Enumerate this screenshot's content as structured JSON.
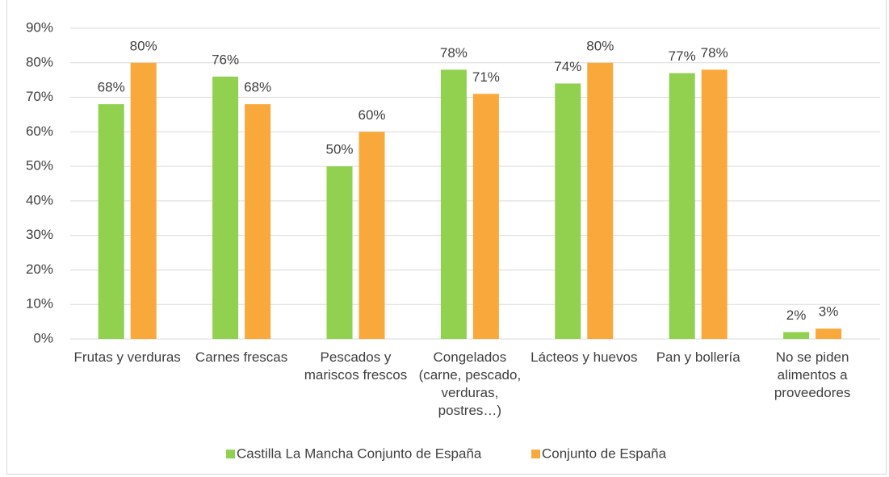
{
  "chart_data": {
    "type": "bar",
    "categories": [
      "Frutas y verduras",
      "Carnes frescas",
      "Pescados y mariscos frescos",
      "Congelados (carne, pescado, verduras, postres…)",
      "Lácteos y huevos",
      "Pan y bollería",
      "No se piden alimentos a proveedores"
    ],
    "series": [
      {
        "name": "Castilla La Mancha Conjunto de España",
        "color": "#92d050",
        "values": [
          68,
          76,
          50,
          78,
          74,
          77,
          2
        ],
        "value_labels": [
          "68%",
          "76%",
          "50%",
          "78%",
          "74%",
          "77%",
          "2%"
        ]
      },
      {
        "name": "Conjunto de España",
        "color": "#f9a93b",
        "values": [
          80,
          68,
          60,
          71,
          80,
          78,
          3
        ],
        "value_labels": [
          "80%",
          "68%",
          "60%",
          "71%",
          "80%",
          "78%",
          "3%"
        ]
      }
    ],
    "ylim": [
      0,
      90
    ],
    "yticks": [
      {
        "value": 0,
        "label": "0%"
      },
      {
        "value": 10,
        "label": "10%"
      },
      {
        "value": 20,
        "label": "20%"
      },
      {
        "value": 30,
        "label": "30%"
      },
      {
        "value": 40,
        "label": "40%"
      },
      {
        "value": 50,
        "label": "50%"
      },
      {
        "value": 60,
        "label": "60%"
      },
      {
        "value": 70,
        "label": "70%"
      },
      {
        "value": 80,
        "label": "80%"
      },
      {
        "value": 90,
        "label": "90%"
      }
    ],
    "grid": true,
    "legend": "bottom"
  }
}
